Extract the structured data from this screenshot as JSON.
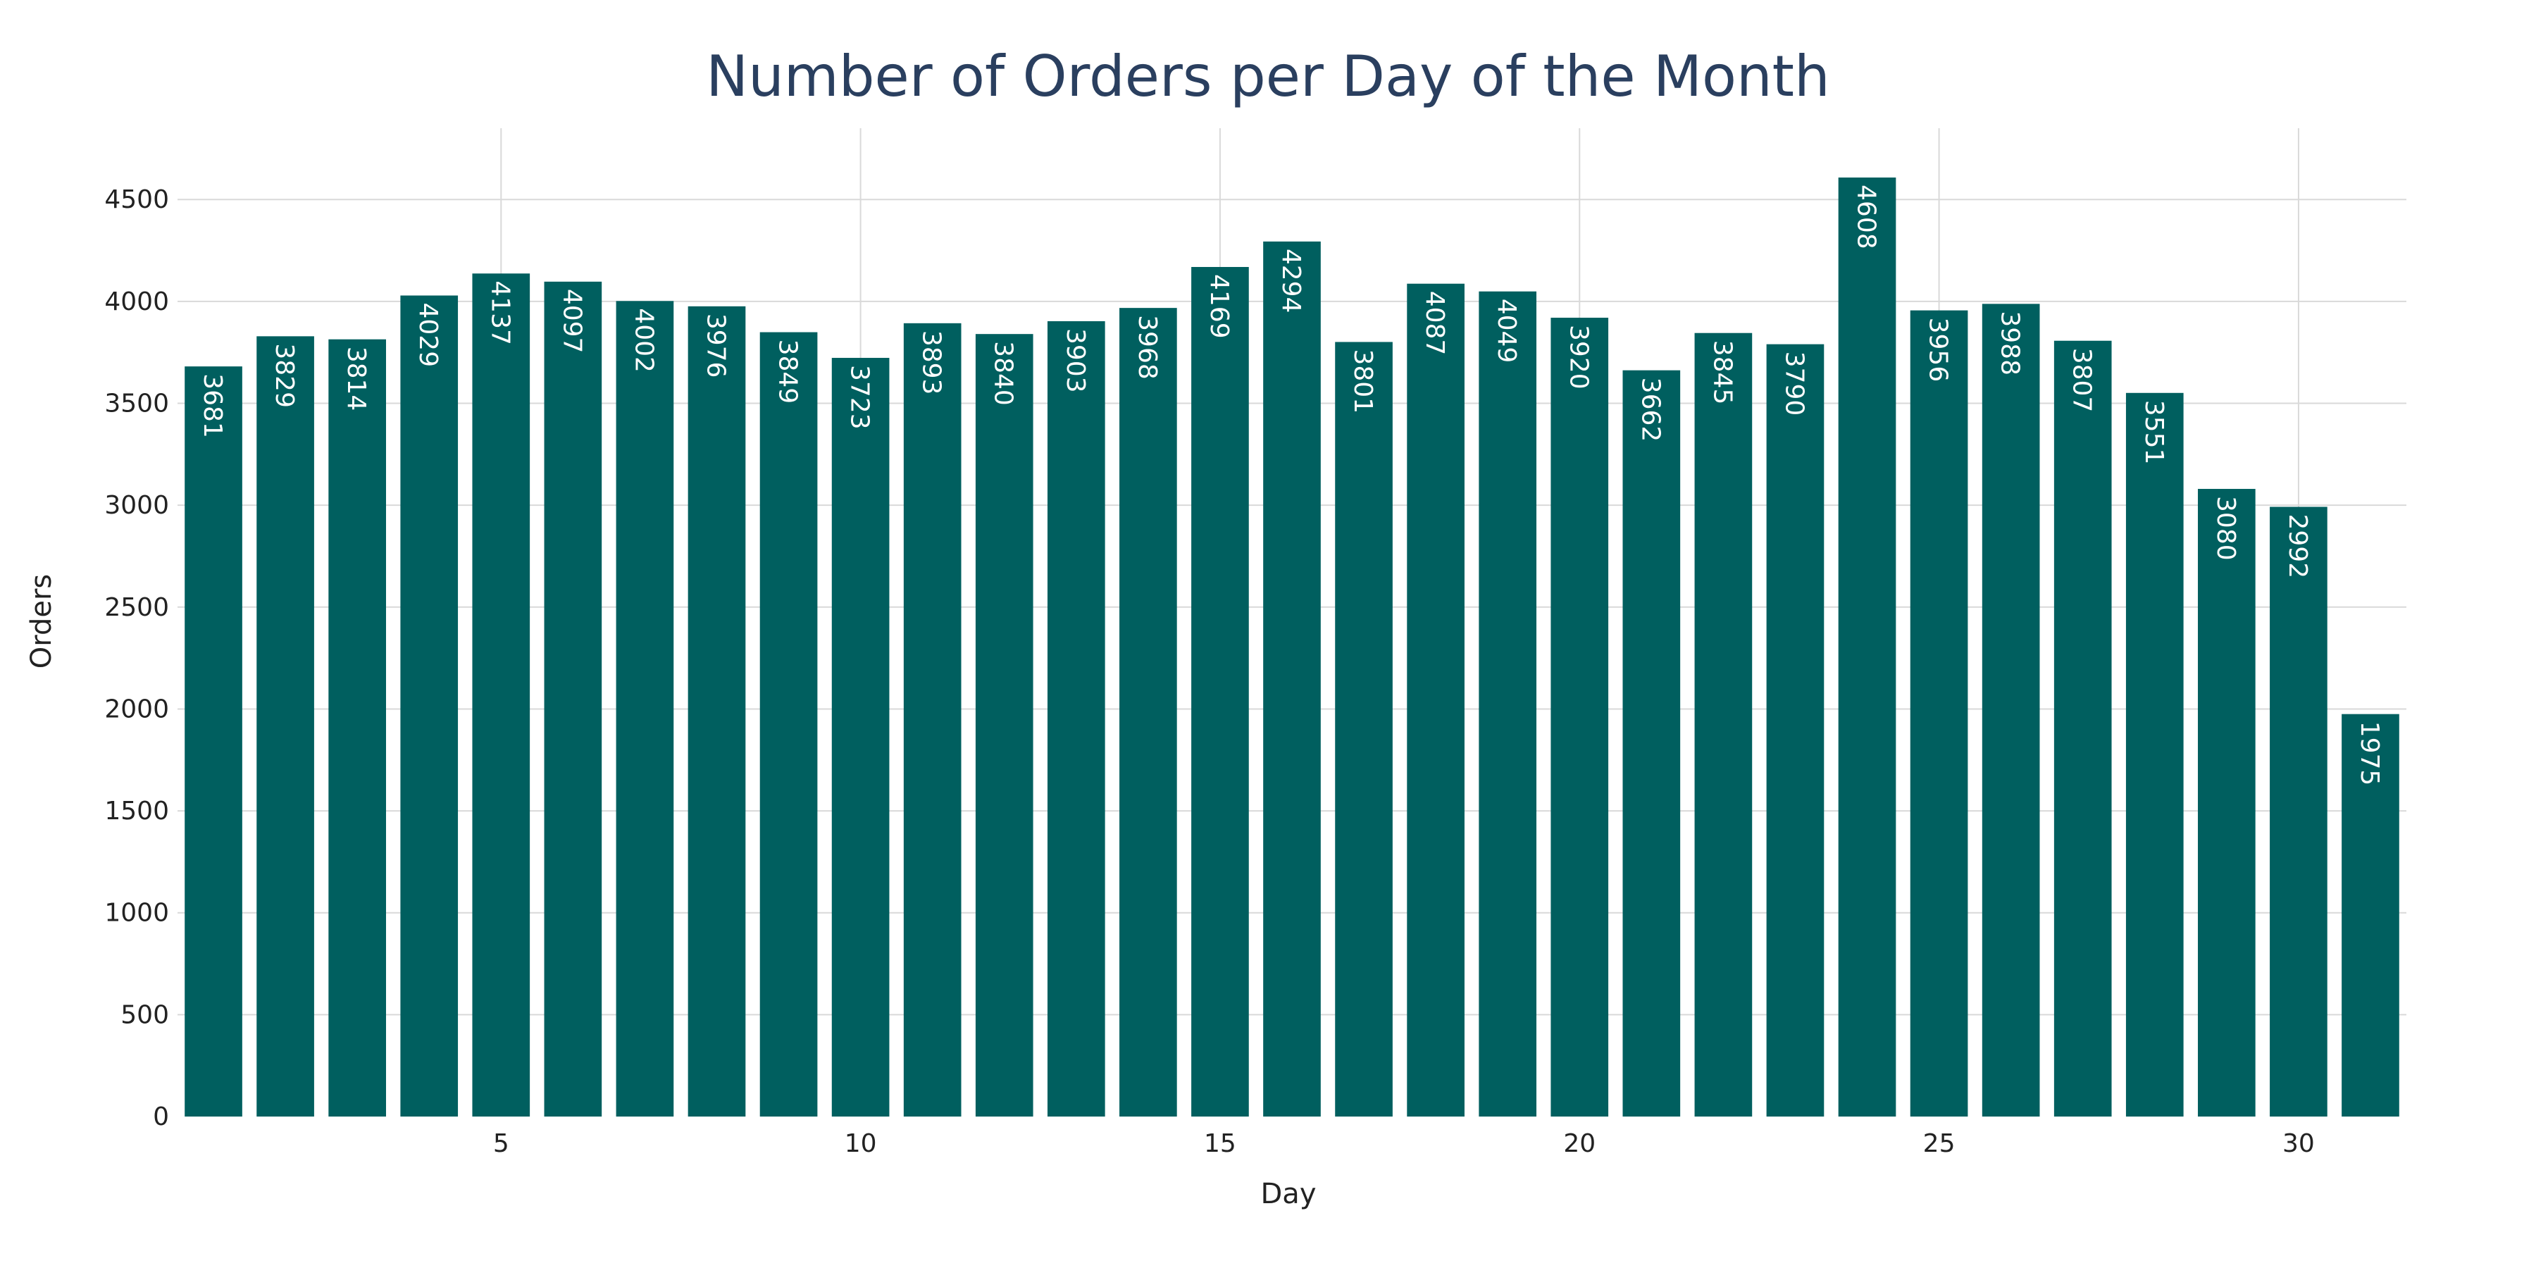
{
  "chart_data": {
    "type": "bar",
    "title": "Number of Orders per Day of the Month",
    "xlabel": "Day",
    "ylabel": "Orders",
    "x": [
      1,
      2,
      3,
      4,
      5,
      6,
      7,
      8,
      9,
      10,
      11,
      12,
      13,
      14,
      15,
      16,
      17,
      18,
      19,
      20,
      21,
      22,
      23,
      24,
      25,
      26,
      27,
      28,
      29,
      30,
      31
    ],
    "values": [
      3681,
      3829,
      3814,
      4029,
      4137,
      4097,
      4002,
      3976,
      3849,
      3723,
      3893,
      3840,
      3903,
      3968,
      4169,
      4294,
      3801,
      4087,
      4049,
      3920,
      3662,
      3845,
      3790,
      4608,
      3956,
      3988,
      3807,
      3551,
      3080,
      2992,
      1975
    ],
    "x_ticks": [
      5,
      10,
      15,
      20,
      25,
      30
    ],
    "y_ticks": [
      0,
      500,
      1000,
      1500,
      2000,
      2500,
      3000,
      3500,
      4000,
      4500
    ],
    "ylim": [
      0,
      4850
    ],
    "xlim": [
      0.5,
      31.5
    ],
    "grid": true,
    "bar_color": "#005f5f",
    "grid_color": "#d9d9d9",
    "data_labels": "inside-end, rotated"
  }
}
